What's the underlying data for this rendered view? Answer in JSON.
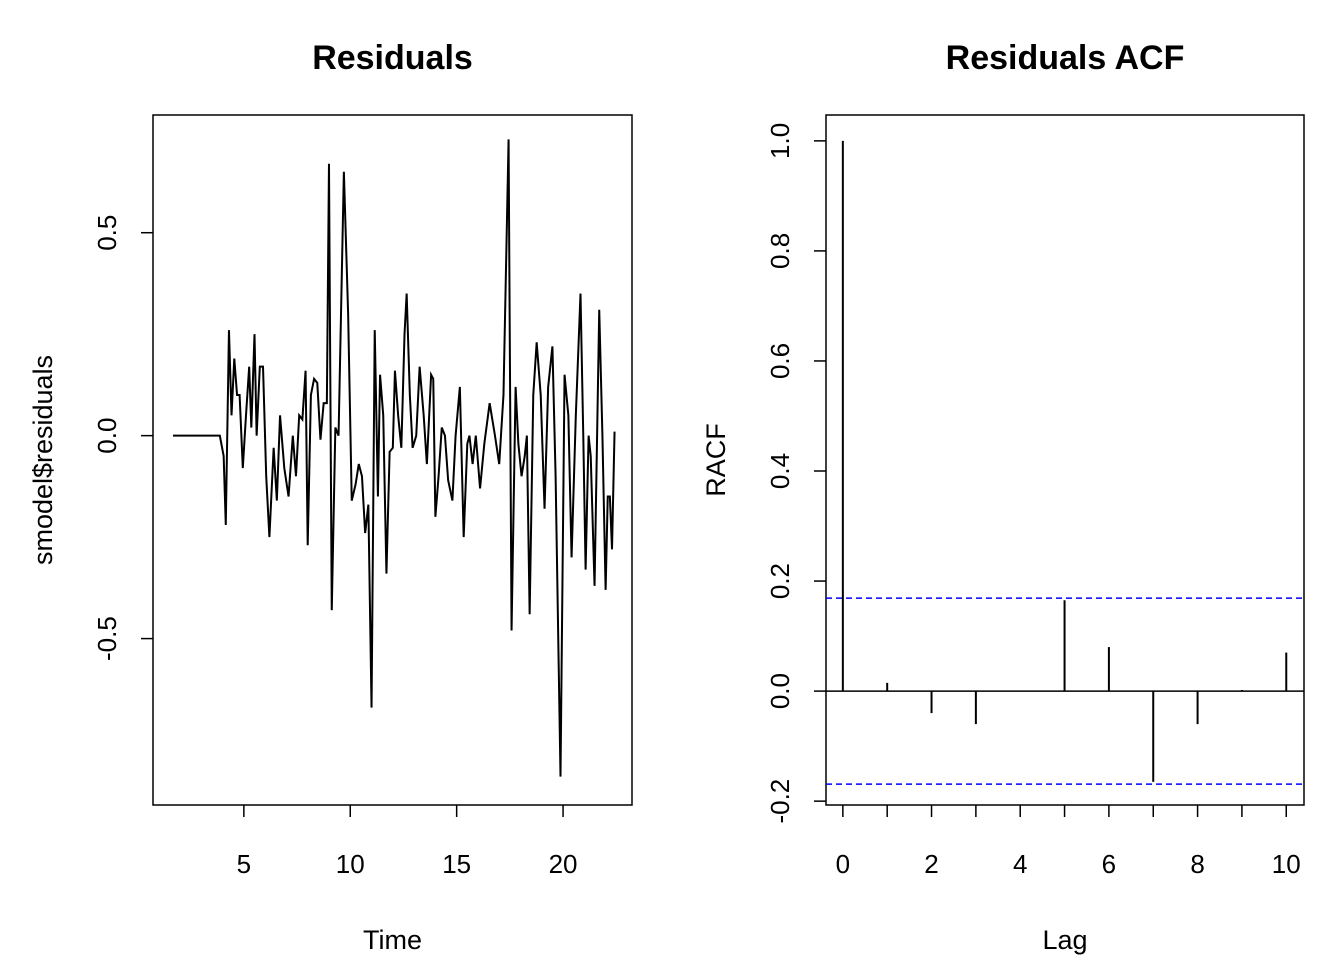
{
  "chart_data": [
    {
      "type": "line",
      "title": "Residuals",
      "x_label": "Time",
      "y_label": "smodel$residuals",
      "color": "#000000",
      "x": [
        1.67,
        3.87,
        4.05,
        4.15,
        4.3,
        4.42,
        4.55,
        4.68,
        4.8,
        4.95,
        5.1,
        5.25,
        5.35,
        5.5,
        5.6,
        5.75,
        5.9,
        6.05,
        6.2,
        6.4,
        6.55,
        6.7,
        6.9,
        7.1,
        7.3,
        7.45,
        7.6,
        7.75,
        7.9,
        8.0,
        8.15,
        8.3,
        8.45,
        8.6,
        8.75,
        8.9,
        9.0,
        9.13,
        9.3,
        9.45,
        9.7,
        9.9,
        10.07,
        10.25,
        10.4,
        10.55,
        10.7,
        10.85,
        11.0,
        11.15,
        11.3,
        11.4,
        11.55,
        11.7,
        11.85,
        12.0,
        12.1,
        12.25,
        12.4,
        12.55,
        12.65,
        12.8,
        12.93,
        13.1,
        13.26,
        13.45,
        13.6,
        13.8,
        13.9,
        14.0,
        14.15,
        14.3,
        14.45,
        14.6,
        14.8,
        14.95,
        15.15,
        15.33,
        15.5,
        15.6,
        15.75,
        15.9,
        16.1,
        16.3,
        16.55,
        16.8,
        17.0,
        17.2,
        17.44,
        17.58,
        17.77,
        17.9,
        18.05,
        18.2,
        18.3,
        18.43,
        18.6,
        18.76,
        18.95,
        19.13,
        19.3,
        19.5,
        19.65,
        19.88,
        20.07,
        20.25,
        20.4,
        20.6,
        20.82,
        20.95,
        21.06,
        21.2,
        21.3,
        21.48,
        21.7,
        21.85,
        22.0,
        22.1,
        22.2,
        22.3,
        22.42
      ],
      "values": [
        0,
        0,
        -0.05,
        -0.22,
        0.26,
        0.05,
        0.19,
        0.1,
        0.1,
        -0.08,
        0.05,
        0.17,
        0.02,
        0.25,
        0.0,
        0.17,
        0.17,
        -0.1,
        -0.25,
        -0.03,
        -0.16,
        0.05,
        -0.08,
        -0.15,
        0.0,
        -0.1,
        0.05,
        0.04,
        0.16,
        -0.27,
        0.1,
        0.14,
        0.13,
        -0.01,
        0.08,
        0.08,
        0.67,
        -0.43,
        0.02,
        0.0,
        0.65,
        0.3,
        -0.16,
        -0.12,
        -0.07,
        -0.1,
        -0.24,
        -0.17,
        -0.67,
        0.26,
        -0.15,
        0.15,
        0.05,
        -0.34,
        -0.04,
        -0.03,
        0.16,
        0.05,
        -0.03,
        0.25,
        0.35,
        0.1,
        -0.03,
        0.0,
        0.17,
        0.05,
        -0.07,
        0.15,
        0.14,
        -0.2,
        -0.1,
        0.02,
        0.0,
        -0.11,
        -0.16,
        0.0,
        0.12,
        -0.25,
        -0.02,
        0.0,
        -0.07,
        0.0,
        -0.13,
        -0.02,
        0.08,
        0.0,
        -0.07,
        0.1,
        0.73,
        -0.48,
        0.12,
        -0.02,
        -0.1,
        -0.05,
        0.0,
        -0.44,
        0.1,
        0.23,
        0.1,
        -0.18,
        0.12,
        0.22,
        -0.1,
        -0.84,
        0.15,
        0.05,
        -0.3,
        0.05,
        0.35,
        0.0,
        -0.33,
        0.0,
        -0.05,
        -0.37,
        0.31,
        0.0,
        -0.38,
        -0.15,
        -0.15,
        -0.28,
        0.01
      ],
      "xlim": [
        0.73,
        23.24
      ],
      "xticks": [
        5,
        10,
        15,
        20
      ],
      "ylim": [
        -0.91,
        0.79
      ],
      "yticks": [
        -0.5,
        {
          "value": 0,
          "label": "0.0"
        },
        0.5
      ]
    },
    {
      "type": "stem",
      "title": "Residuals ACF",
      "x_label": "Lag",
      "y_label": "RACF",
      "color": "#000000",
      "x": [
        0,
        1,
        2,
        3,
        4,
        5,
        6,
        7,
        8,
        9,
        10
      ],
      "values": [
        1.0,
        0.015,
        -0.04,
        -0.06,
        0.0,
        0.165,
        0.08,
        -0.165,
        -0.06,
        0.002,
        0.07
      ],
      "conf_lines": [
        0.169,
        -0.169
      ],
      "conf_color": "#0000ff",
      "xlim": [
        -0.38,
        10.4
      ],
      "xticks": [
        0,
        2,
        4,
        6,
        8,
        10
      ],
      "xminor_ticks": [
        1,
        3,
        5,
        7,
        9
      ],
      "ylim": [
        -0.207,
        1.047
      ],
      "yticks": [
        -0.2,
        {
          "value": 0,
          "label": "0.0"
        },
        0.2,
        0.4,
        0.6,
        0.8,
        {
          "value": 1,
          "label": "1.0"
        }
      ]
    }
  ]
}
